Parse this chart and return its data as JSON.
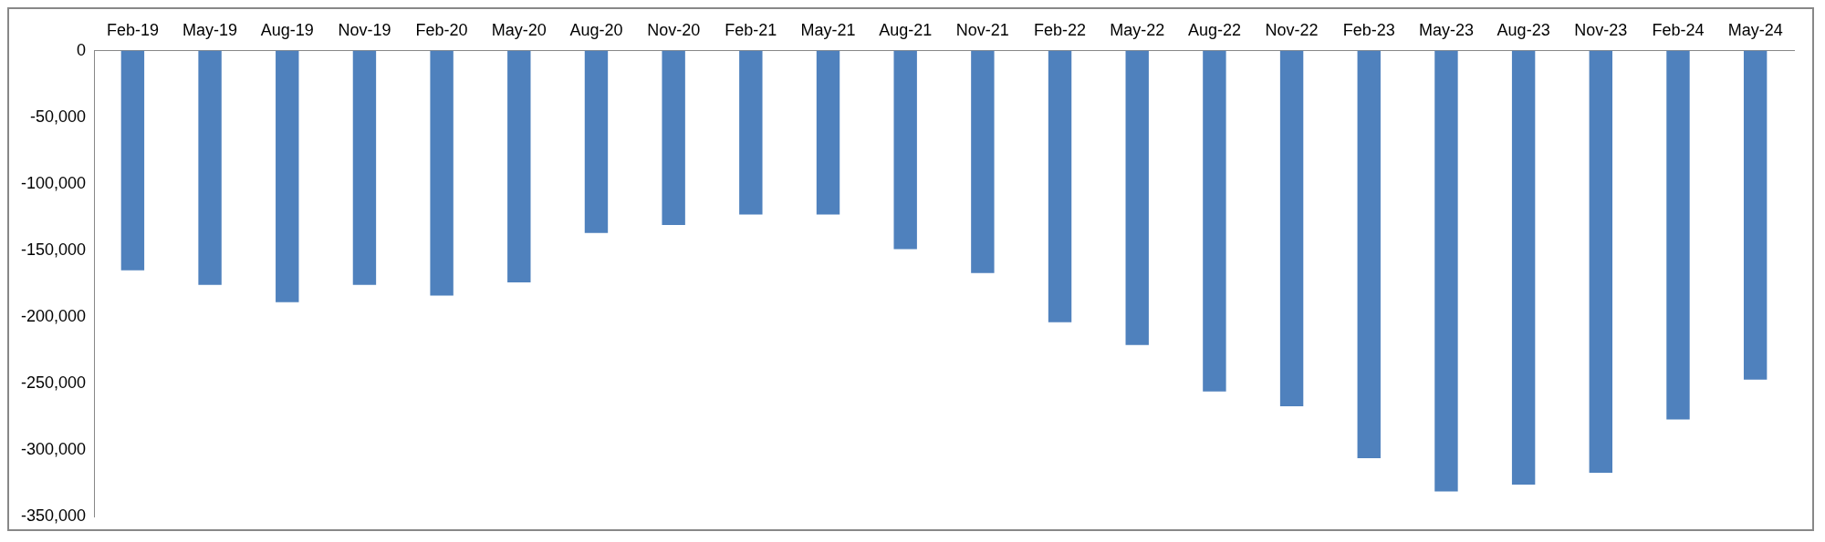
{
  "chart_data": {
    "type": "bar",
    "categories": [
      "Feb-19",
      "May-19",
      "Aug-19",
      "Nov-19",
      "Feb-20",
      "May-20",
      "Aug-20",
      "Nov-20",
      "Feb-21",
      "May-21",
      "Aug-21",
      "Nov-21",
      "Feb-22",
      "May-22",
      "Aug-22",
      "Nov-22",
      "Feb-23",
      "May-23",
      "Aug-23",
      "Nov-23",
      "Feb-24",
      "May-24"
    ],
    "values": [
      -165000,
      -176000,
      -189000,
      -176000,
      -184000,
      -174000,
      -137000,
      -131000,
      -123000,
      -123000,
      -149000,
      -167000,
      -204000,
      -221000,
      -256000,
      -267000,
      -306000,
      -331000,
      -326000,
      -317000,
      -277000,
      -247000
    ],
    "color": "#4f81bd",
    "ylim": [
      -350000,
      0
    ],
    "yticks": [
      {
        "value": -350000,
        "label": "-350,000"
      },
      {
        "value": -300000,
        "label": "-300,000"
      },
      {
        "value": -250000,
        "label": "-250,000"
      },
      {
        "value": -200000,
        "label": "-200,000"
      },
      {
        "value": -150000,
        "label": "-150,000"
      },
      {
        "value": -100000,
        "label": "-100,000"
      },
      {
        "value": -50000,
        "label": "-50,000"
      },
      0
    ],
    "grid": false,
    "legend": false
  }
}
